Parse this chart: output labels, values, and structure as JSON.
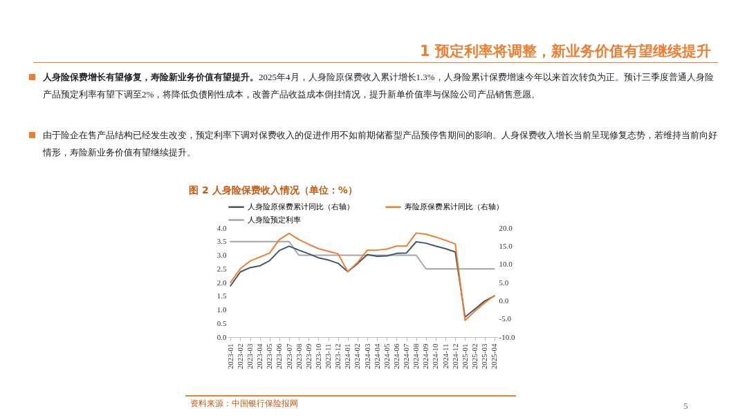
{
  "chart_data": {
    "type": "line",
    "title": "图 2 人身险保费收入情况（单位：%）",
    "categories": [
      "2023-01",
      "2023-02",
      "2023-03",
      "2023-04",
      "2023-05",
      "2023-06",
      "2023-07",
      "2023-08",
      "2023-09",
      "2023-10",
      "2023-11",
      "2023-12",
      "2024-01",
      "2024-02",
      "2024-03",
      "2024-04",
      "2024-05",
      "2024-06",
      "2024-07",
      "2024-08",
      "2024-09",
      "2024-10",
      "2024-11",
      "2024-12",
      "2025-01",
      "2025-02",
      "2025-03",
      "2025-04"
    ],
    "ylim": [
      0,
      4
    ],
    "yticks": [
      {
        "value": 0,
        "label": "0.0"
      },
      {
        "value": 0.5,
        "label": "0.5"
      },
      {
        "value": 1,
        "label": "1.0"
      },
      {
        "value": 1.5,
        "label": "1.5"
      },
      {
        "value": 2,
        "label": "2.0"
      },
      {
        "value": 2.5,
        "label": "2.5"
      },
      {
        "value": 3,
        "label": "3.0"
      },
      {
        "value": 3.5,
        "label": "3.5"
      },
      {
        "value": 4,
        "label": "4.0"
      }
    ],
    "y2lim": [
      -10,
      20
    ],
    "y2ticks": [
      {
        "value": -10,
        "label": "-10.0"
      },
      {
        "value": -5,
        "label": "-5.0"
      },
      {
        "value": 0,
        "label": "0.0"
      },
      {
        "value": 5,
        "label": "5.0"
      },
      {
        "value": 10,
        "label": "10.0"
      },
      {
        "value": 15,
        "label": "15.0"
      },
      {
        "value": 20,
        "label": "20.0"
      }
    ],
    "series": [
      {
        "name": "人身险原保费累计同比（右轴）",
        "color": "#44546a",
        "axis": "y2",
        "values": [
          4.1,
          7.9,
          9.1,
          9.6,
          11.0,
          13.8,
          15.0,
          13.9,
          12.9,
          11.8,
          11.2,
          10.3,
          8.0,
          10.2,
          12.7,
          12.2,
          12.3,
          13.0,
          13.1,
          16.2,
          15.8,
          15.0,
          14.3,
          13.4,
          -4.5,
          -2.3,
          -0.1,
          1.3
        ]
      },
      {
        "name": "寿险原保费累计同比（右轴）",
        "color": "#ed7d31",
        "axis": "y2",
        "values": [
          5.0,
          8.8,
          10.9,
          12.0,
          13.1,
          16.8,
          18.5,
          16.8,
          15.5,
          14.3,
          13.6,
          12.9,
          8.0,
          10.5,
          13.9,
          13.9,
          14.2,
          15.0,
          15.0,
          18.6,
          18.3,
          17.5,
          16.6,
          15.6,
          -5.4,
          -2.9,
          -0.6,
          1.4
        ]
      },
      {
        "name": "人身险预定利率",
        "color": "#a5a5a5",
        "values": [
          3.5,
          3.5,
          3.5,
          3.5,
          3.5,
          3.5,
          3.5,
          3.0,
          3.0,
          3.0,
          3.0,
          3.0,
          3.0,
          3.0,
          3.0,
          3.0,
          3.0,
          3.0,
          3.0,
          3.0,
          2.5,
          2.5,
          2.5,
          2.5,
          2.5,
          2.5,
          2.5,
          2.5
        ]
      }
    ],
    "legend": "top",
    "grid": false,
    "annotations": [
      "1 预定利率将调整，新业务价值有望继续提升",
      "人身险保费增长有望修复，寿险新业务价值有望提升。2025年4月，人身险原保费收入累计增长1.3%，人身险累计保费增速今年以来首次转负为正。预计三季度普通人身险产品预定利率有望下调至2%，将降低负债刚性成本，改善产品收益成本倒挂情况，提升新单价值率与保险公司产品销售意愿。",
      "由于险企在售产品结构已经发生改变，预定利率下调对保费收入的促进作用不如前期储蓄型产品预停售期间的影响。人身保费收入增长当前呈现修复态势，若维持当前向好情形，寿险新业务价值有望继续提升。",
      "资料来源：中国银行保险报网",
      "5"
    ]
  }
}
